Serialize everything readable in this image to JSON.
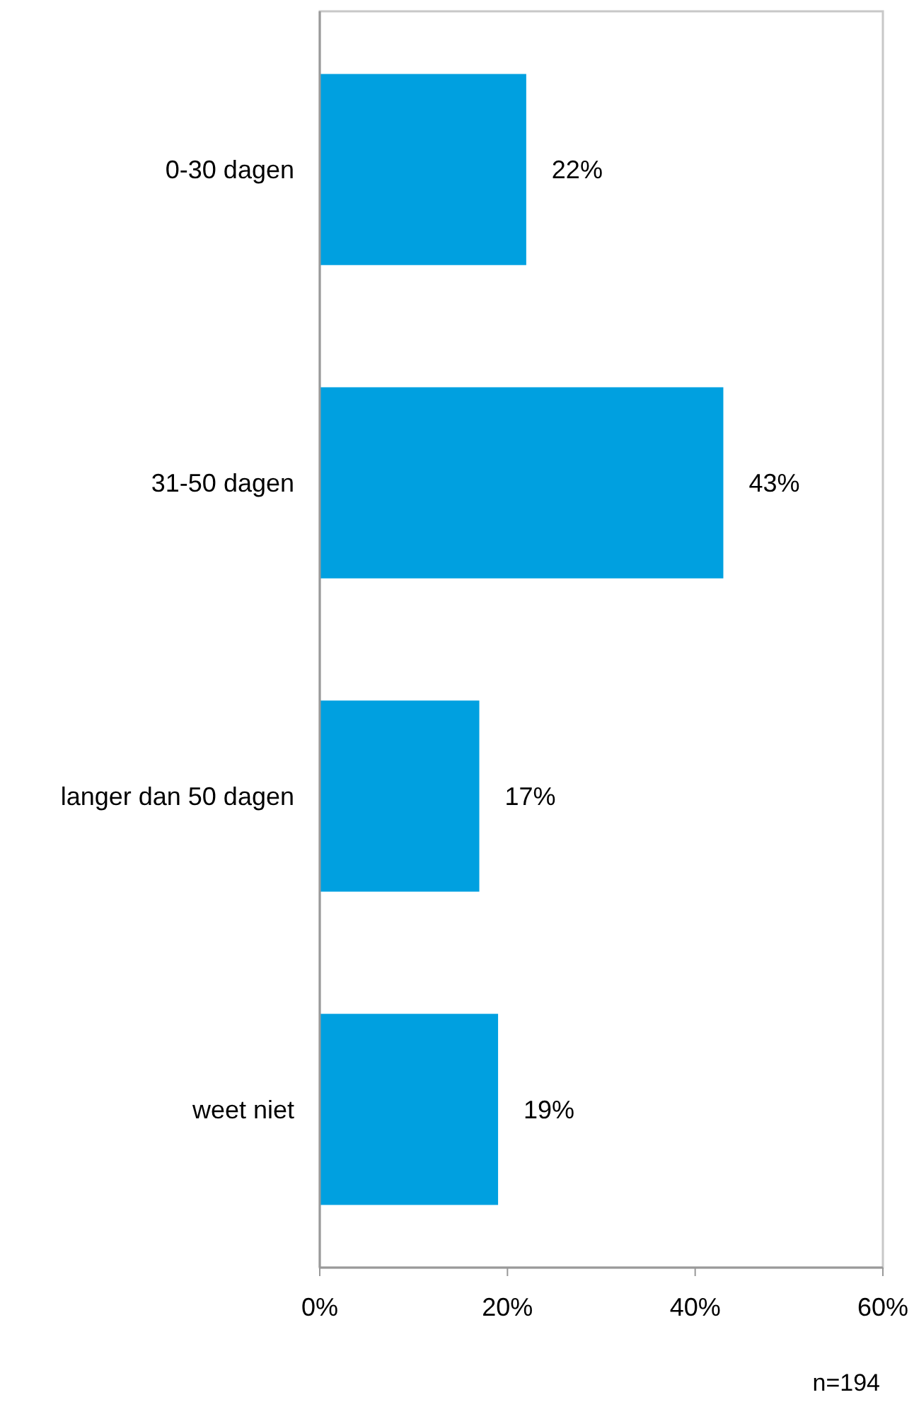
{
  "chart_data": {
    "type": "bar",
    "orientation": "horizontal",
    "categories": [
      "0-30 dagen",
      "31-50 dagen",
      "langer dan 50 dagen",
      "weet niet"
    ],
    "values": [
      22,
      43,
      17,
      19
    ],
    "value_labels": [
      "22%",
      "43%",
      "17%",
      "19%"
    ],
    "color": "#00a0e0",
    "xlim": [
      0,
      60
    ],
    "xticks": [
      {
        "value": 0,
        "label": "0%"
      },
      {
        "value": 20,
        "label": "20%"
      },
      {
        "value": 40,
        "label": "40%"
      },
      {
        "value": 60,
        "label": "60%"
      }
    ],
    "annotations": [
      "n=194"
    ]
  }
}
